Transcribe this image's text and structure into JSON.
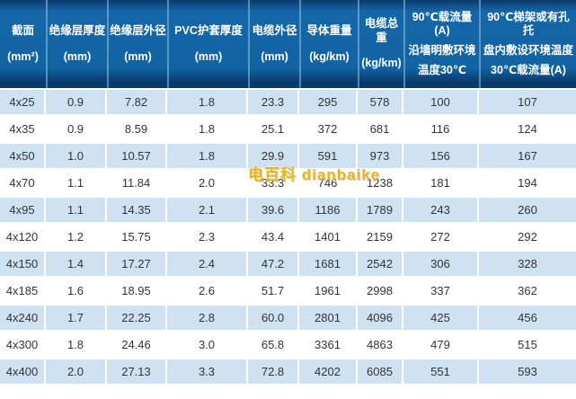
{
  "colors": {
    "header_blue": "#1263a2",
    "header_dark": "#0a3a68",
    "row_alt_blue": "#cfe2f1",
    "row_white": "#ffffff",
    "body_text": "#343434",
    "watermark_gold": "#e9b51d"
  },
  "watermark": {
    "text": "电百科 dianbaike"
  },
  "table": {
    "headers": [
      {
        "lines": [
          "截面",
          "(mm²)"
        ]
      },
      {
        "lines": [
          "绝缘层厚度",
          "(mm)"
        ]
      },
      {
        "lines": [
          "绝缘层外径",
          "(mm)"
        ]
      },
      {
        "lines": [
          "PVC护套厚度",
          "(mm)"
        ]
      },
      {
        "lines": [
          "电缆外径",
          "(mm)"
        ]
      },
      {
        "lines": [
          "导体重量",
          "(kg/km)"
        ]
      },
      {
        "lines": [
          "电缆总重",
          "(kg/km)"
        ]
      },
      {
        "lines": [
          "90℃载流量(A)",
          "沿墙明敷环境",
          "温度30℃"
        ]
      },
      {
        "lines": [
          "90℃梯架或有孔托",
          "盘内敷设环境温度",
          "30℃载流量(A)"
        ]
      }
    ]
  },
  "chart_data": {
    "type": "table",
    "columns": [
      "截面(mm²)",
      "绝缘层厚度(mm)",
      "绝缘层外径(mm)",
      "PVC护套厚度(mm)",
      "电缆外径(mm)",
      "导体重量(kg/km)",
      "电缆总重(kg/km)",
      "90℃载流量(A)沿墙明敷环境温度30℃",
      "90℃梯架或有孔托盘内敷设环境温度30℃载流量(A)"
    ],
    "rows": [
      [
        "4x25",
        "0.9",
        "7.82",
        "1.8",
        "23.3",
        "295",
        "578",
        "100",
        "107"
      ],
      [
        "4x35",
        "0.9",
        "8.59",
        "1.8",
        "25.1",
        "372",
        "681",
        "116",
        "124"
      ],
      [
        "4x50",
        "1.0",
        "10.57",
        "1.8",
        "29.9",
        "591",
        "973",
        "156",
        "167"
      ],
      [
        "4x70",
        "1.1",
        "11.84",
        "2.0",
        "33.3",
        "746",
        "1238",
        "181",
        "194"
      ],
      [
        "4x95",
        "1.1",
        "14.35",
        "2.1",
        "39.6",
        "1186",
        "1789",
        "243",
        "260"
      ],
      [
        "4x120",
        "1.2",
        "15.75",
        "2.3",
        "43.4",
        "1401",
        "2159",
        "272",
        "292"
      ],
      [
        "4x150",
        "1.4",
        "17.27",
        "2.4",
        "47.2",
        "1681",
        "2542",
        "306",
        "328"
      ],
      [
        "4x185",
        "1.6",
        "18.95",
        "2.6",
        "51.7",
        "1961",
        "2998",
        "337",
        "362"
      ],
      [
        "4x240",
        "1.7",
        "22.25",
        "2.8",
        "60.0",
        "2801",
        "4096",
        "425",
        "456"
      ],
      [
        "4x300",
        "1.8",
        "24.46",
        "3.0",
        "65.8",
        "3361",
        "4863",
        "479",
        "515"
      ],
      [
        "4x400",
        "2.0",
        "27.13",
        "3.3",
        "72.8",
        "4202",
        "6085",
        "551",
        "593"
      ]
    ]
  }
}
